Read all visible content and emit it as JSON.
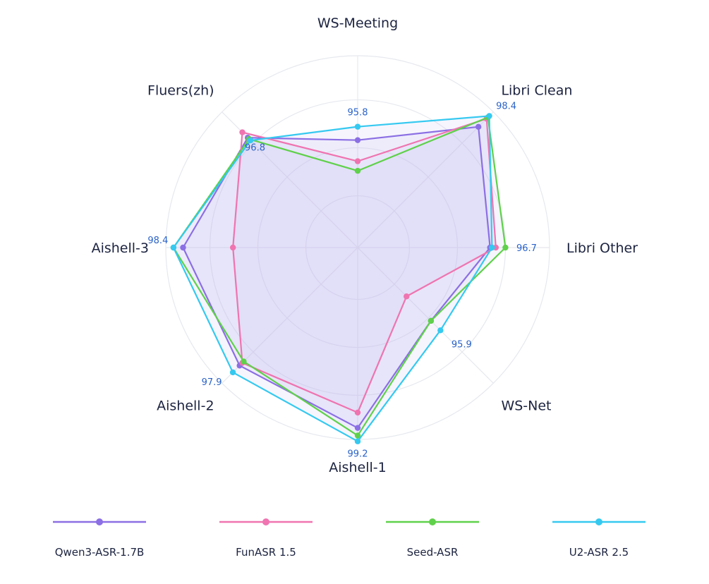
{
  "chart_data": {
    "type": "radar",
    "axes": [
      "WS-Meeting",
      "Libri Clean",
      "Libri Other",
      "WS-Net",
      "Aishell-1",
      "Aishell-2",
      "Aishell-3",
      "Fluers(zh)"
    ],
    "series": [
      {
        "name": "Qwen3-ASR-1.7B",
        "color": "#8b6fe4",
        "values": [
          0.56,
          0.89,
          0.69,
          0.54,
          0.94,
          0.87,
          0.91,
          0.81
        ]
      },
      {
        "name": "FunASR 1.5",
        "color": "#ef74b0",
        "values": [
          0.45,
          0.95,
          0.72,
          0.36,
          0.86,
          0.85,
          0.65,
          0.85
        ]
      },
      {
        "name": "Seed-ASR",
        "color": "#5fd14a",
        "values": [
          0.4,
          0.96,
          0.77,
          0.54,
          0.98,
          0.84,
          0.96,
          0.8
        ]
      },
      {
        "name": "U2-ASR 2.5",
        "color": "#35c9f0",
        "values": [
          0.63,
          0.97,
          0.7,
          0.61,
          1.01,
          0.92,
          0.96,
          0.79
        ]
      }
    ],
    "peak_labels": [
      {
        "axis": "WS-Meeting",
        "text": "95.8"
      },
      {
        "axis": "Libri Clean",
        "text": "98.4"
      },
      {
        "axis": "Libri Other",
        "text": "96.7"
      },
      {
        "axis": "WS-Net",
        "text": "95.9"
      },
      {
        "axis": "Aishell-1",
        "text": "99.2"
      },
      {
        "axis": "Aishell-2",
        "text": "97.9"
      },
      {
        "axis": "Aishell-3",
        "text": "98.4"
      },
      {
        "axis": "Fluers(zh)",
        "text": "96.8"
      }
    ],
    "grid": true,
    "legend_position": "bottom",
    "fill_area": "light lavender under all series"
  }
}
